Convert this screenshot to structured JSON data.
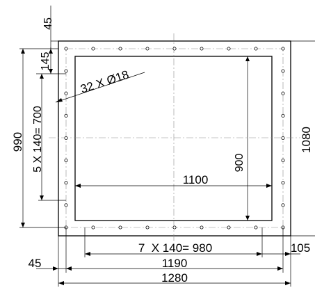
{
  "drawing": {
    "dim_top_offset": "45",
    "dim_first_pitch": "145",
    "dim_hole_callout": "32 X Ø18",
    "dim_vertical_pitch": "5 X 140= 700",
    "dim_vertical_span": "990",
    "dim_inner_height": "900",
    "dim_outer_height": "1080",
    "dim_inner_width": "1100",
    "dim_horizontal_pitch": "7  X 140= 980",
    "dim_end_offset": "105",
    "dim_left_offset": "45",
    "dim_hole_span": "1190",
    "dim_outer_width": "1280"
  }
}
